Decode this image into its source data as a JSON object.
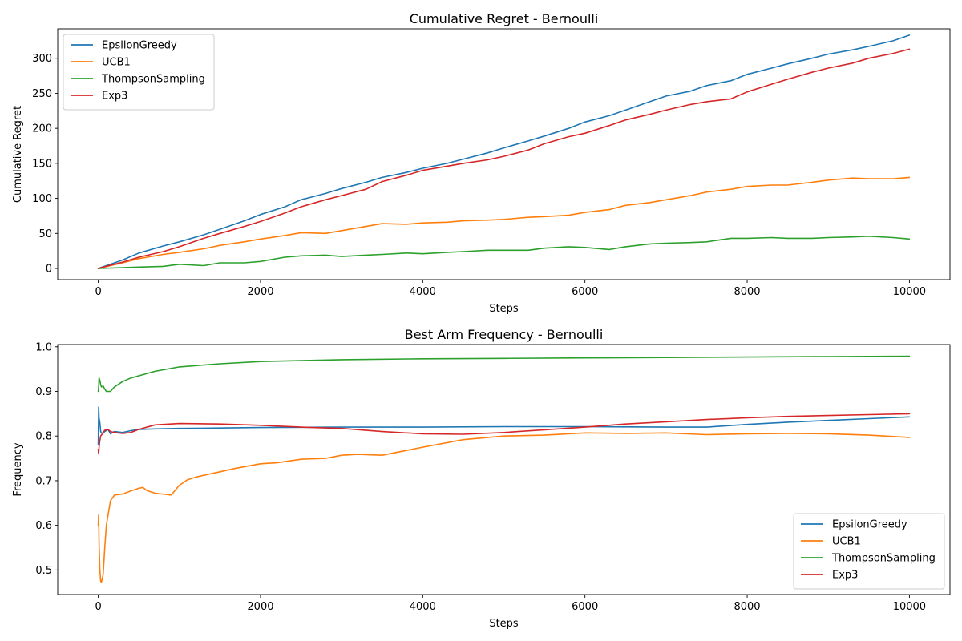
{
  "chart_data": [
    {
      "type": "line",
      "title": "Cumulative Regret - Bernoulli",
      "xlabel": "Steps",
      "ylabel": "Cumulative Regret",
      "xlim": [
        -500,
        10500
      ],
      "ylim": [
        -16,
        342
      ],
      "xticks": [
        0,
        2000,
        4000,
        6000,
        8000,
        10000
      ],
      "yticks": [
        0,
        50,
        100,
        150,
        200,
        250,
        300
      ],
      "legend_position": "upper-left",
      "grid": false,
      "series": [
        {
          "name": "EpsilonGreedy",
          "color": "#1f77b4",
          "x": [
            0,
            300,
            500,
            800,
            1000,
            1300,
            1500,
            1800,
            2000,
            2300,
            2500,
            2800,
            3000,
            3300,
            3500,
            3800,
            4000,
            4300,
            4500,
            4800,
            5000,
            5300,
            5500,
            5800,
            6000,
            6300,
            6500,
            6800,
            7000,
            7300,
            7500,
            7800,
            8000,
            8300,
            8500,
            8800,
            9000,
            9300,
            9500,
            9800,
            10000
          ],
          "y": [
            0,
            12,
            22,
            32,
            38,
            48,
            56,
            68,
            77,
            88,
            98,
            107,
            114,
            123,
            130,
            137,
            143,
            150,
            156,
            165,
            172,
            182,
            189,
            200,
            209,
            218,
            226,
            238,
            246,
            253,
            261,
            268,
            277,
            286,
            292,
            300,
            306,
            312,
            317,
            325,
            333
          ]
        },
        {
          "name": "UCB1",
          "color": "#ff7f0e",
          "x": [
            0,
            300,
            500,
            800,
            1000,
            1300,
            1500,
            1800,
            2000,
            2300,
            2500,
            2800,
            3000,
            3300,
            3500,
            3800,
            4000,
            4300,
            4500,
            4800,
            5000,
            5300,
            5500,
            5800,
            6000,
            6300,
            6500,
            6800,
            7000,
            7300,
            7500,
            7800,
            8000,
            8300,
            8500,
            8800,
            9000,
            9300,
            9500,
            9800,
            10000
          ],
          "y": [
            0,
            8,
            14,
            20,
            23,
            28,
            33,
            38,
            42,
            47,
            51,
            50,
            54,
            60,
            64,
            63,
            65,
            66,
            68,
            69,
            70,
            73,
            74,
            76,
            80,
            84,
            90,
            94,
            98,
            104,
            109,
            113,
            117,
            119,
            119,
            123,
            126,
            129,
            128,
            128,
            130
          ]
        },
        {
          "name": "ThompsonSampling",
          "color": "#2ca02c",
          "x": [
            0,
            300,
            500,
            800,
            1000,
            1300,
            1500,
            1800,
            2000,
            2300,
            2500,
            2800,
            3000,
            3300,
            3500,
            3800,
            4000,
            4300,
            4500,
            4800,
            5000,
            5300,
            5500,
            5800,
            6000,
            6300,
            6500,
            6800,
            7000,
            7300,
            7500,
            7800,
            8000,
            8300,
            8500,
            8800,
            9000,
            9300,
            9500,
            9800,
            10000
          ],
          "y": [
            0,
            1,
            2,
            3,
            6,
            4,
            8,
            8,
            10,
            16,
            18,
            19,
            17,
            19,
            20,
            22,
            21,
            23,
            24,
            26,
            26,
            26,
            29,
            31,
            30,
            27,
            31,
            35,
            36,
            37,
            38,
            43,
            43,
            44,
            43,
            43,
            44,
            45,
            46,
            44,
            42
          ]
        },
        {
          "name": "Exp3",
          "color": "#d62728",
          "x": [
            0,
            300,
            500,
            800,
            1000,
            1300,
            1500,
            1800,
            2000,
            2300,
            2500,
            2800,
            3000,
            3300,
            3500,
            3800,
            4000,
            4300,
            4500,
            4800,
            5000,
            5300,
            5500,
            5800,
            6000,
            6300,
            6500,
            6800,
            7000,
            7300,
            7500,
            7800,
            8000,
            8300,
            8500,
            8800,
            9000,
            9300,
            9500,
            9800,
            10000
          ],
          "y": [
            0,
            9,
            16,
            24,
            31,
            43,
            50,
            60,
            67,
            79,
            88,
            98,
            104,
            113,
            124,
            133,
            140,
            146,
            150,
            155,
            160,
            169,
            178,
            188,
            193,
            204,
            212,
            220,
            226,
            234,
            238,
            242,
            252,
            263,
            270,
            280,
            286,
            293,
            300,
            307,
            313
          ]
        }
      ]
    },
    {
      "type": "line",
      "title": "Best Arm Frequency - Bernoulli",
      "xlabel": "Steps",
      "ylabel": "Frequency",
      "xlim": [
        -500,
        10500
      ],
      "ylim": [
        0.445,
        1.005
      ],
      "xticks": [
        0,
        2000,
        4000,
        6000,
        8000,
        10000
      ],
      "yticks": [
        0.5,
        0.6,
        0.7,
        0.8,
        0.9,
        1.0
      ],
      "ytick_labels": [
        "0.5",
        "0.6",
        "0.7",
        "0.8",
        "0.9",
        "1.0"
      ],
      "legend_position": "lower-right",
      "grid": false,
      "series": [
        {
          "name": "EpsilonGreedy",
          "color": "#1f77b4",
          "x": [
            0,
            5,
            10,
            20,
            30,
            50,
            80,
            120,
            150,
            200,
            300,
            400,
            500,
            700,
            1000,
            1500,
            2000,
            3000,
            4000,
            5000,
            6000,
            7000,
            7500,
            8000,
            8500,
            9000,
            9500,
            10000
          ],
          "y": [
            0.78,
            0.865,
            0.84,
            0.83,
            0.81,
            0.805,
            0.81,
            0.815,
            0.805,
            0.81,
            0.808,
            0.812,
            0.815,
            0.816,
            0.817,
            0.818,
            0.819,
            0.82,
            0.82,
            0.821,
            0.821,
            0.82,
            0.82,
            0.826,
            0.831,
            0.835,
            0.839,
            0.843
          ]
        },
        {
          "name": "UCB1",
          "color": "#ff7f0e",
          "x": [
            0,
            5,
            10,
            20,
            30,
            40,
            60,
            80,
            100,
            150,
            200,
            300,
            400,
            500,
            550,
            600,
            700,
            900,
            1000,
            1100,
            1200,
            1300,
            1500,
            1700,
            2000,
            2200,
            2500,
            2800,
            3000,
            3200,
            3500,
            4000,
            4500,
            5000,
            5500,
            6000,
            6500,
            7000,
            7500,
            8000,
            8500,
            9000,
            9500,
            10000
          ],
          "y": [
            0.6,
            0.625,
            0.56,
            0.5,
            0.475,
            0.473,
            0.49,
            0.55,
            0.6,
            0.655,
            0.668,
            0.67,
            0.677,
            0.683,
            0.685,
            0.678,
            0.672,
            0.668,
            0.69,
            0.702,
            0.708,
            0.712,
            0.72,
            0.728,
            0.738,
            0.74,
            0.748,
            0.75,
            0.757,
            0.759,
            0.757,
            0.775,
            0.792,
            0.8,
            0.802,
            0.807,
            0.806,
            0.807,
            0.803,
            0.805,
            0.806,
            0.805,
            0.802,
            0.797
          ]
        },
        {
          "name": "ThompsonSampling",
          "color": "#2ca02c",
          "x": [
            0,
            5,
            10,
            20,
            30,
            40,
            60,
            80,
            100,
            150,
            200,
            300,
            400,
            500,
            700,
            1000,
            1500,
            2000,
            2500,
            3000,
            4000,
            5000,
            6000,
            7000,
            8000,
            9000,
            10000
          ],
          "y": [
            0.9,
            0.91,
            0.93,
            0.925,
            0.915,
            0.91,
            0.912,
            0.905,
            0.9,
            0.9,
            0.91,
            0.922,
            0.93,
            0.935,
            0.945,
            0.955,
            0.962,
            0.967,
            0.969,
            0.971,
            0.973,
            0.974,
            0.975,
            0.976,
            0.977,
            0.978,
            0.979
          ]
        },
        {
          "name": "Exp3",
          "color": "#d62728",
          "x": [
            0,
            5,
            10,
            20,
            30,
            50,
            80,
            120,
            150,
            200,
            300,
            400,
            500,
            700,
            1000,
            1500,
            2000,
            2500,
            3000,
            3500,
            4000,
            4500,
            5000,
            5500,
            6000,
            6500,
            7000,
            7500,
            8000,
            8500,
            9000,
            9500,
            10000
          ],
          "y": [
            0.77,
            0.76,
            0.775,
            0.79,
            0.8,
            0.805,
            0.813,
            0.815,
            0.81,
            0.808,
            0.806,
            0.808,
            0.815,
            0.825,
            0.828,
            0.827,
            0.824,
            0.82,
            0.817,
            0.81,
            0.805,
            0.804,
            0.808,
            0.814,
            0.82,
            0.827,
            0.832,
            0.837,
            0.841,
            0.844,
            0.846,
            0.848,
            0.85
          ]
        }
      ]
    }
  ]
}
